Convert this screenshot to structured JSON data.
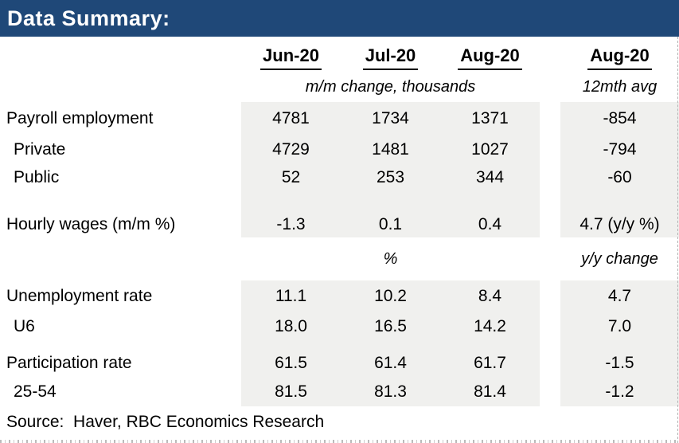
{
  "title_bar": {
    "title": "Data Summary:"
  },
  "colors": {
    "header_bg": "#1F4878",
    "header_text": "#FFFFFF",
    "column_shade": "#F0F0EE",
    "text": "#000000"
  },
  "chart_data": {
    "type": "table",
    "title": "Data Summary:",
    "period_headers": [
      "Jun-20",
      "Jul-20",
      "Aug-20"
    ],
    "avg_period_header": "Aug-20",
    "section1_units": "m/m change, thousands",
    "section1_avg_units": "12mth avg",
    "section2_units": "%",
    "section2_avg_units": "y/y change",
    "rows": [
      {
        "label": "Payroll employment",
        "values": [
          "4781",
          "1734",
          "1371"
        ],
        "avg": "-854"
      },
      {
        "label": "Private",
        "values": [
          "4729",
          "1481",
          "1027"
        ],
        "avg": "-794"
      },
      {
        "label": "Public",
        "values": [
          "52",
          "253",
          "344"
        ],
        "avg": "-60"
      },
      {
        "label": "Hourly wages (m/m %)",
        "values": [
          "-1.3",
          "0.1",
          "0.4"
        ],
        "avg": "4.7 (y/y %)"
      },
      {
        "label": "Unemployment rate",
        "values": [
          "11.1",
          "10.2",
          "8.4"
        ],
        "avg": "4.7"
      },
      {
        "label": "U6",
        "values": [
          "18.0",
          "16.5",
          "14.2"
        ],
        "avg": "7.0"
      },
      {
        "label": "Participation rate",
        "values": [
          "61.5",
          "61.4",
          "61.7"
        ],
        "avg": "-1.5"
      },
      {
        "label": "25-54",
        "values": [
          "81.5",
          "81.3",
          "81.4"
        ],
        "avg": "-1.2"
      }
    ]
  },
  "footer": {
    "source": "Source:  Haver, RBC Economics Research"
  }
}
